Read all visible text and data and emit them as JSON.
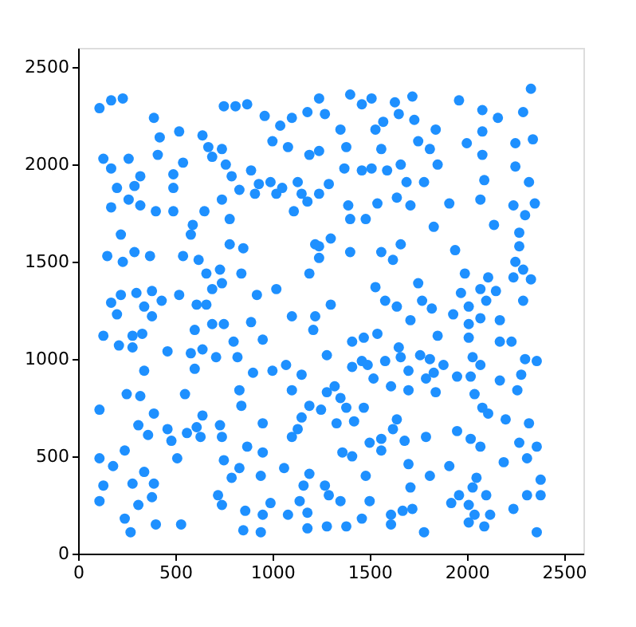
{
  "chart_data": {
    "type": "scatter",
    "xlim": [
      0,
      2600
    ],
    "ylim": [
      0,
      2600
    ],
    "xticks": [
      0,
      500,
      1000,
      1500,
      2000,
      2500
    ],
    "yticks": [
      0,
      500,
      1000,
      1500,
      2000,
      2500
    ],
    "grid": false,
    "marker": "circle",
    "series": [
      {
        "color": "#1e90ff",
        "x": [
          110,
          170,
          230,
          390,
          420,
          410,
          520,
          130,
          170,
          260,
          320,
          290,
          200,
          260,
          320,
          170,
          400,
          490,
          490,
          540,
          490,
          640,
          670,
          690,
          740,
          760,
          790,
          830,
          890,
          740,
          780,
          650,
          590,
          580,
          220,
          290,
          150,
          230,
          370,
          540,
          620,
          660,
          730,
          740,
          690,
          780,
          850,
          840,
          750,
          810,
          870,
          960,
          1000,
          1040,
          1080,
          1100,
          1180,
          1190,
          930,
          910,
          990,
          1020,
          1050,
          1130,
          1150,
          1110,
          1180,
          1220,
          1190,
          920,
          1020,
          220,
          300,
          380,
          520,
          1240,
          1270,
          1400,
          1460,
          1510,
          1630,
          1650,
          1720,
          1570,
          1530,
          1350,
          1240,
          1380,
          1560,
          1730,
          1750,
          1810,
          1840,
          1850,
          1960,
          2080,
          2160,
          2290,
          2330,
          2080,
          2000,
          2250,
          2340,
          2080,
          2250,
          2320,
          2090,
          1370,
          1460,
          1510,
          1590,
          1660,
          1290,
          1240,
          1690,
          1780,
          1640,
          1710,
          1540,
          1390,
          1400,
          1480,
          1910,
          2070,
          2240,
          2350,
          2300,
          1830,
          2140,
          2270,
          2270,
          1300,
          1240,
          1240,
          1400,
          1560,
          1660,
          1620,
          1940,
          2250,
          2290,
          2240,
          2330,
          1990,
          2110,
          1750,
          1530,
          1970,
          2070,
          2150,
          170,
          200,
          340,
          380,
          430,
          610,
          660,
          1100,
          1220,
          1210,
          130,
          210,
          280,
          280,
          330,
          460,
          600,
          580,
          640,
          690,
          750,
          710,
          800,
          820,
          890,
          950,
          340,
          600,
          900,
          1000,
          1070,
          1150,
          250,
          320,
          550,
          830,
          840,
          1100,
          1190,
          110,
          640,
          390,
          310,
          360,
          460,
          560,
          610,
          630,
          730,
          740,
          950,
          1150,
          1130,
          1100,
          240,
          480,
          110,
          180,
          510,
          750,
          870,
          950,
          830,
          790,
          1060,
          1190,
          940,
          130,
          280,
          340,
          390,
          380,
          310,
          720,
          740,
          990,
          1160,
          1140,
          110,
          240,
          270,
          400,
          530,
          860,
          850,
          950,
          940,
          1080,
          1180,
          1180,
          1300,
          1580,
          1640,
          1770,
          1820,
          2010,
          2100,
          2290,
          1930,
          2010,
          2070,
          2170,
          1710,
          1540,
          1410,
          1470,
          1280,
          1650,
          1660,
          1580,
          1410,
          1460,
          1490,
          1520,
          1700,
          1760,
          1810,
          1850,
          1880,
          1830,
          1790,
          2010,
          2030,
          2070,
          2020,
          1950,
          2170,
          2230,
          2170,
          2300,
          2360,
          2280,
          2260,
          1610,
          1700,
          1840,
          2040,
          2080,
          2110,
          1280,
          1320,
          1350,
          1380,
          1250,
          1470,
          1330,
          1420,
          1640,
          1620,
          1560,
          1500,
          1560,
          1680,
          1790,
          1950,
          2020,
          2070,
          2200,
          2320,
          2270,
          2360,
          1360,
          1410,
          2310,
          2190,
          1700,
          1910,
          1810,
          1480,
          2050,
          1270,
          1290,
          1350,
          1500,
          1710,
          2030,
          1960,
          2100,
          2380,
          2310,
          2380,
          1920,
          2010,
          2040,
          2120,
          2240,
          1720,
          1670,
          1610,
          1610,
          1460,
          1380,
          1280,
          1780,
          2010,
          2090,
          2360
        ],
        "values": [
          2290,
          2330,
          2340,
          2240,
          2140,
          2050,
          2170,
          2030,
          1980,
          2030,
          1940,
          1890,
          1880,
          1820,
          1790,
          1780,
          1760,
          1950,
          1880,
          2010,
          1760,
          2150,
          2090,
          2040,
          2080,
          2000,
          1940,
          1870,
          1970,
          1820,
          1720,
          1760,
          1690,
          1640,
          1640,
          1550,
          1530,
          1500,
          1530,
          1530,
          1510,
          1440,
          1460,
          1390,
          1360,
          1590,
          1570,
          1440,
          2300,
          2300,
          2310,
          2250,
          2120,
          2200,
          2090,
          2240,
          2270,
          2050,
          1900,
          1850,
          1910,
          1850,
          1880,
          1910,
          1850,
          1760,
          1810,
          1590,
          1440,
          1330,
          1360,
          1330,
          1340,
          1350,
          1330,
          2340,
          2260,
          2360,
          2310,
          2340,
          2320,
          2260,
          2350,
          2220,
          2180,
          2180,
          2070,
          2090,
          2080,
          2230,
          2120,
          2080,
          2180,
          2000,
          2330,
          2280,
          2240,
          2270,
          2390,
          2170,
          2110,
          2110,
          2130,
          2050,
          1990,
          1910,
          1920,
          1980,
          1970,
          1980,
          1970,
          2000,
          1900,
          1850,
          1910,
          1910,
          1830,
          1790,
          1800,
          1790,
          1720,
          1720,
          1800,
          1820,
          1790,
          1800,
          1740,
          1680,
          1690,
          1650,
          1580,
          1620,
          1580,
          1520,
          1550,
          1550,
          1590,
          1510,
          1560,
          1500,
          1460,
          1420,
          1410,
          1440,
          1420,
          1390,
          1370,
          1340,
          1360,
          1350,
          1290,
          1230,
          1270,
          1220,
          1300,
          1280,
          1280,
          1220,
          1220,
          1150,
          1120,
          1070,
          1120,
          1060,
          1130,
          1040,
          1150,
          1030,
          1050,
          1180,
          1180,
          1010,
          1090,
          1010,
          1190,
          1100,
          940,
          950,
          930,
          940,
          970,
          920,
          820,
          810,
          820,
          840,
          760,
          840,
          760,
          740,
          710,
          720,
          660,
          610,
          640,
          620,
          650,
          600,
          660,
          600,
          670,
          700,
          640,
          600,
          530,
          580,
          490,
          450,
          490,
          480,
          550,
          520,
          440,
          390,
          440,
          410,
          400,
          350,
          360,
          420,
          360,
          290,
          250,
          300,
          250,
          260,
          350,
          270,
          270,
          180,
          110,
          150,
          150,
          220,
          120,
          200,
          110,
          200,
          210,
          130,
          1280,
          1300,
          1270,
          1300,
          1260,
          1270,
          1300,
          1300,
          1230,
          1180,
          1210,
          1200,
          1200,
          1130,
          1090,
          1110,
          1020,
          1060,
          1010,
          990,
          960,
          990,
          970,
          900,
          940,
          1020,
          1000,
          1120,
          970,
          930,
          900,
          1110,
          1010,
          970,
          910,
          910,
          1090,
          1090,
          890,
          1000,
          990,
          920,
          840,
          860,
          840,
          830,
          820,
          750,
          720,
          830,
          860,
          800,
          750,
          740,
          750,
          670,
          680,
          690,
          640,
          590,
          570,
          530,
          580,
          600,
          630,
          590,
          550,
          690,
          670,
          570,
          550,
          520,
          500,
          490,
          470,
          460,
          450,
          400,
          400,
          390,
          350,
          300,
          270,
          270,
          340,
          340,
          300,
          300,
          380,
          300,
          300,
          260,
          250,
          200,
          200,
          230,
          230,
          220,
          200,
          150,
          180,
          140,
          140,
          110,
          160,
          140,
          110
        ]
      }
    ]
  }
}
